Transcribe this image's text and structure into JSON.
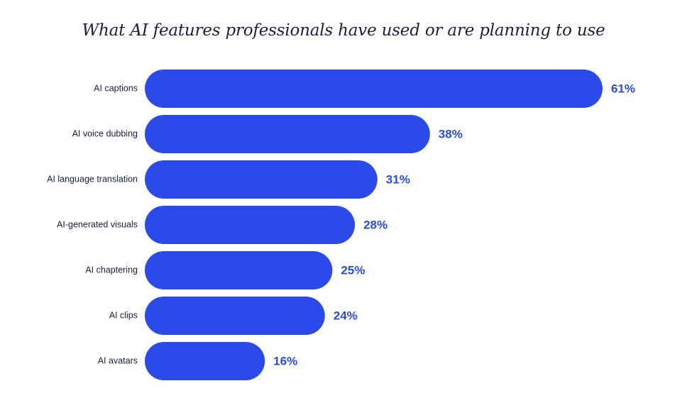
{
  "chart_data": {
    "type": "bar",
    "orientation": "horizontal",
    "title": "What AI features professionals have used or are planning to use",
    "categories": [
      "AI captions",
      "AI voice dubbing",
      "AI language translation",
      "AI-generated visuals",
      "AI chaptering",
      "AI clips",
      "AI avatars"
    ],
    "values": [
      61,
      38,
      31,
      28,
      25,
      24,
      16
    ],
    "value_labels": [
      "61%",
      "38%",
      "31%",
      "28%",
      "25%",
      "24%",
      "16%"
    ],
    "unit": "%",
    "xlim": [
      0,
      61
    ],
    "grid": false,
    "legend": "none",
    "colors": {
      "bar": "#2a4bea",
      "value_text": "#2a4bea",
      "category_text": "#1a1f3d",
      "title_text": "#1a1f3d"
    }
  }
}
